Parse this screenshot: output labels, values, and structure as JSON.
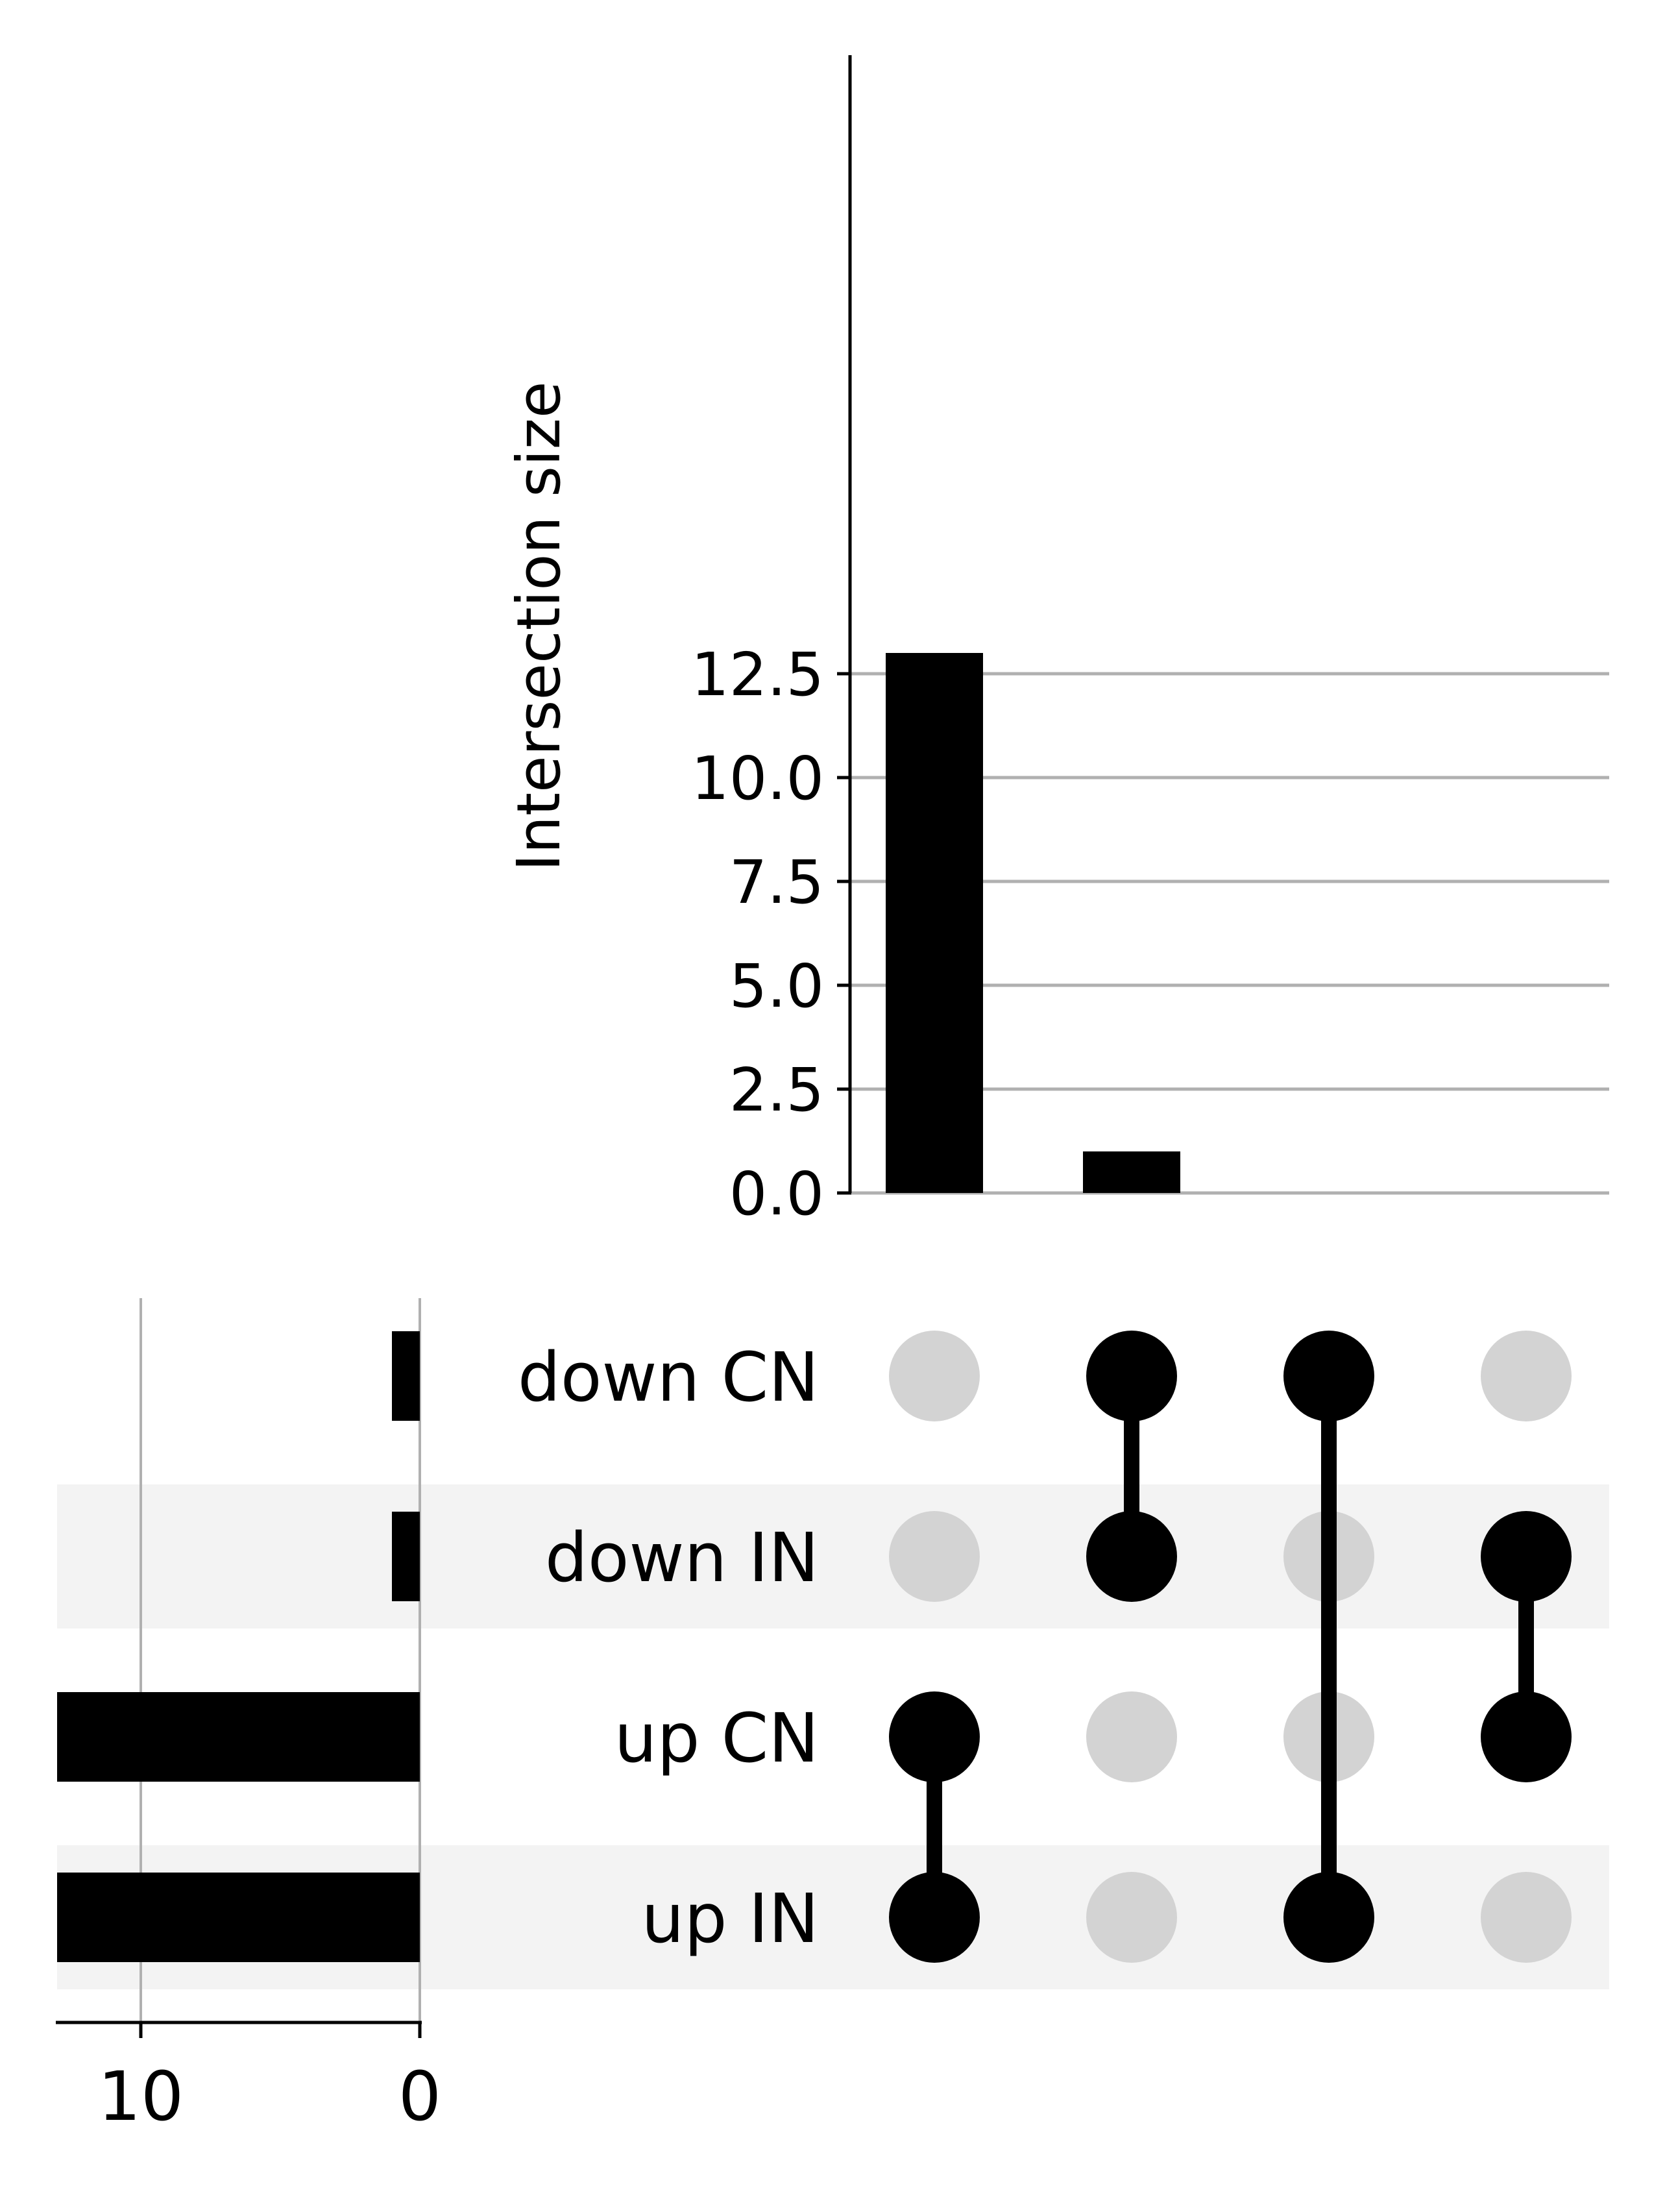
{
  "chart_data": {
    "type": "bar",
    "ylabel": "Intersection size",
    "xlabel": "",
    "title": "",
    "ylim": [
      0,
      13.6
    ],
    "yticks": [
      "0.0",
      "2.5",
      "5.0",
      "7.5",
      "10.0",
      "12.5"
    ],
    "grid": true,
    "sets": [
      "down CN",
      "down IN",
      "up CN",
      "up IN"
    ],
    "set_sizes": [
      1,
      1,
      13,
      13
    ],
    "set_size_xlim": [
      13,
      0
    ],
    "set_size_ticks": [
      "10",
      "0"
    ],
    "intersections": [
      {
        "members": [
          "up CN",
          "up IN"
        ],
        "size": 13
      },
      {
        "members": [
          "down CN",
          "down IN"
        ],
        "size": 1
      },
      {
        "members": [
          "down CN",
          "up IN"
        ],
        "size": 0
      },
      {
        "members": [
          "down IN",
          "up CN"
        ],
        "size": 0
      }
    ],
    "colors": {
      "bar": "#000000",
      "grid": "#b0b0b0",
      "dot_inactive": "#d3d3d3",
      "row_shade": "#f3f3f3"
    }
  }
}
